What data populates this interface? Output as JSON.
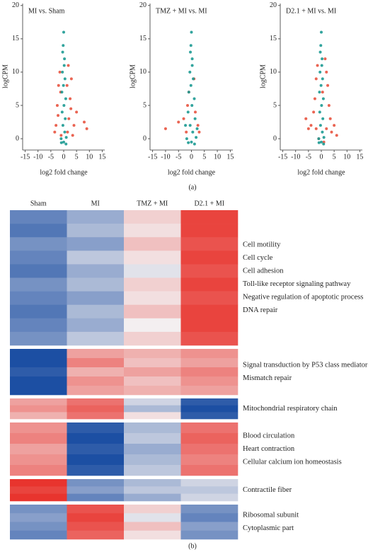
{
  "captions": [
    "(a)",
    "(b)"
  ],
  "chart_data": [
    {
      "type": "scatter",
      "title": "MI vs. Sham",
      "xlabel": "log2 fold change",
      "ylabel": "logCPM",
      "xlim": [
        -16,
        16
      ],
      "ylim": [
        -1.7,
        20.3
      ],
      "xticks": [
        -15,
        -10,
        -5,
        0,
        5,
        10,
        15
      ],
      "yticks": [
        0,
        5,
        10,
        15,
        20
      ],
      "series": [
        {
          "color": "#e8533f",
          "x": [
            -3,
            -2.5,
            -2,
            -1.5,
            2,
            2.5,
            3,
            1.8,
            -3.5,
            4,
            5,
            8,
            9,
            -1,
            1.5,
            -2.2,
            2.8,
            -1.2,
            1.3,
            3.5
          ],
          "values": [
            2,
            5,
            8,
            10,
            3,
            6,
            9,
            11,
            1,
            2,
            4,
            2.5,
            1.5,
            0.5,
            1,
            3.5,
            4.5,
            7,
            8,
            0.5
          ]
        },
        {
          "color": "#1c9a92",
          "x": [
            0,
            -0.2,
            0.3,
            -0.5,
            0.5,
            -0.7,
            0.8,
            -0.6,
            0.6,
            -0.3,
            0.4,
            0,
            -1,
            1,
            0.1,
            -0.1,
            0.2,
            -0.4,
            0.9,
            -0.9
          ],
          "values": [
            16,
            14,
            12,
            10,
            9,
            7,
            6,
            4,
            3,
            2,
            1,
            -0.5,
            0,
            0.2,
            5,
            8,
            11,
            13,
            -0.8,
            -0.6
          ]
        }
      ]
    },
    {
      "type": "scatter",
      "title": "TMZ + MI vs. MI",
      "xlabel": "log2 fold change",
      "ylabel": "logCPM",
      "xlim": [
        -16,
        16
      ],
      "ylim": [
        -1.7,
        20.3
      ],
      "xticks": [
        -15,
        -10,
        -5,
        0,
        5,
        10,
        15
      ],
      "yticks": [
        0,
        5,
        10,
        15,
        20
      ],
      "series": [
        {
          "color": "#e8533f",
          "x": [
            -10,
            -5,
            -3,
            -1.5,
            1.5,
            2.5,
            3,
            -2,
            -1,
            1
          ],
          "values": [
            1.5,
            2.5,
            3,
            5,
            4,
            2,
            1,
            1,
            7,
            9
          ]
        },
        {
          "color": "#1c9a92",
          "x": [
            0,
            -0.2,
            0.3,
            -0.6,
            0.7,
            -1,
            1.1,
            -1.3,
            1.4,
            -0.5,
            0.5,
            0,
            -1.8,
            1.8,
            0.2,
            -0.2,
            0.3,
            -0.4,
            1.2,
            -1.2,
            2.2,
            -2.3
          ],
          "values": [
            16,
            14,
            12,
            10,
            9,
            7,
            6,
            4,
            3,
            2,
            1,
            -0.5,
            0,
            0.2,
            5,
            8,
            11,
            13,
            -0.8,
            -0.6,
            1.5,
            2
          ]
        }
      ]
    },
    {
      "type": "scatter",
      "title": "D2.1 + MI vs. MI",
      "xlabel": "log2 fold change",
      "ylabel": "logCPM",
      "xlim": [
        -16,
        16
      ],
      "ylim": [
        -1.7,
        20.3
      ],
      "xticks": [
        -15,
        -10,
        -5,
        0,
        5,
        10,
        15
      ],
      "yticks": [
        0,
        5,
        10,
        15,
        20
      ],
      "series": [
        {
          "color": "#e8533f",
          "x": [
            -4,
            -3,
            -2.5,
            -2,
            -1.5,
            2,
            2.5,
            3,
            3.5,
            4,
            -5,
            5,
            -6,
            6,
            1.5,
            -1,
            1,
            2,
            -2,
            0.5
          ],
          "values": [
            2,
            4,
            6,
            9,
            11,
            10,
            8,
            5,
            3,
            1,
            1.5,
            2,
            3,
            0.5,
            12,
            0,
            -0.5,
            1.5,
            1.5,
            7
          ]
        },
        {
          "color": "#1c9a92",
          "x": [
            0,
            -0.2,
            0.3,
            -0.5,
            0.5,
            -0.7,
            0.8,
            -0.6,
            0.6,
            -0.3,
            0.4,
            0,
            -1,
            1,
            0.1,
            -0.1,
            0.2,
            -0.4,
            0.9,
            -0.9
          ],
          "values": [
            16,
            14,
            12,
            10,
            9,
            7,
            6,
            4,
            3,
            2,
            1,
            -0.5,
            0,
            0.2,
            5,
            8,
            11,
            13,
            -0.8,
            -0.6
          ]
        }
      ]
    },
    {
      "type": "heatmap",
      "columns": [
        "Sham",
        "MI",
        "TMZ + MI",
        "D2.1 + MI"
      ],
      "zlim": [
        -1.2,
        1.2
      ],
      "colors": [
        "#1c4fa3",
        "#f3eff0",
        "#e8342e"
      ],
      "blocks": [
        {
          "terms": [
            "Cell motility",
            "Cell cycle",
            "Cell adhesion",
            "Toll-like receptor signaling pathway",
            "Negative regulation of apoptotic process",
            "DNA repair"
          ],
          "rows": [
            [
              -0.8,
              -0.5,
              0.2,
              1.1
            ],
            [
              -0.9,
              -0.4,
              0.1,
              1.1
            ],
            [
              -0.7,
              -0.6,
              0.3,
              1.0
            ],
            [
              -0.8,
              -0.3,
              0.1,
              1.1
            ],
            [
              -0.9,
              -0.5,
              -0.1,
              1.0
            ],
            [
              -0.7,
              -0.4,
              0.2,
              1.1
            ],
            [
              -0.8,
              -0.6,
              0.1,
              1.0
            ],
            [
              -0.9,
              -0.4,
              0.3,
              1.1
            ],
            [
              -0.8,
              -0.5,
              0.0,
              1.1
            ],
            [
              -0.7,
              -0.3,
              0.2,
              1.0
            ]
          ]
        },
        {
          "terms": [
            "Signal transduction by P53 class mediator",
            "Mismatch repair"
          ],
          "rows": [
            [
              -1.2,
              0.5,
              0.4,
              0.6
            ],
            [
              -1.2,
              0.7,
              0.3,
              0.5
            ],
            [
              -1.1,
              0.4,
              0.5,
              0.7
            ],
            [
              -1.2,
              0.6,
              0.3,
              0.6
            ],
            [
              -1.2,
              0.5,
              0.4,
              0.5
            ]
          ]
        },
        {
          "terms": [
            "Mitochondrial respiratory chain"
          ],
          "rows": [
            [
              0.5,
              0.8,
              -0.2,
              -1.1
            ],
            [
              0.6,
              0.9,
              -0.4,
              -1.2
            ],
            [
              0.4,
              0.8,
              0.1,
              -1.1
            ]
          ]
        },
        {
          "terms": [
            "Blood circulation",
            "Heart contraction",
            "Cellular calcium ion homeostasis"
          ],
          "rows": [
            [
              0.6,
              -1.1,
              -0.4,
              0.8
            ],
            [
              0.7,
              -1.2,
              -0.3,
              0.9
            ],
            [
              0.5,
              -1.1,
              -0.5,
              0.8
            ],
            [
              0.6,
              -1.2,
              -0.4,
              0.7
            ],
            [
              0.7,
              -1.1,
              -0.3,
              0.8
            ]
          ]
        },
        {
          "terms": [
            "Contractile fiber"
          ],
          "rows": [
            [
              1.2,
              -0.7,
              -0.4,
              -0.2
            ],
            [
              1.1,
              -0.6,
              -0.3,
              -0.3
            ],
            [
              1.2,
              -0.8,
              -0.5,
              -0.2
            ]
          ]
        },
        {
          "terms": [
            "Ribosomal subunit",
            "Cytoplasmic part"
          ],
          "rows": [
            [
              -0.7,
              1.0,
              0.2,
              -0.7
            ],
            [
              -0.6,
              1.1,
              -0.1,
              -0.8
            ],
            [
              -0.7,
              1.0,
              0.3,
              -0.6
            ],
            [
              -0.8,
              0.9,
              0.1,
              -0.7
            ]
          ]
        }
      ]
    }
  ]
}
